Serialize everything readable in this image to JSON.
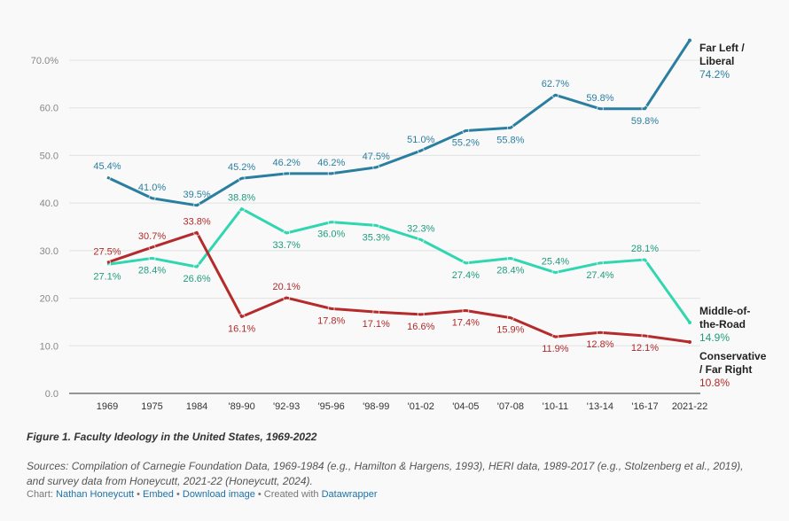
{
  "chart_data": {
    "type": "line",
    "title": "Figure 1. Faculty Ideology in the United States, 1969-2022",
    "x": [
      "1969",
      "1975",
      "1984",
      "'89-90",
      "'92-93",
      "'95-96",
      "'98-99",
      "'01-02",
      "'04-05",
      "'07-08",
      "'10-11",
      "'13-14",
      "'16-17",
      "2021-22"
    ],
    "yticks": [
      "0.0",
      "10.0",
      "20.0",
      "30.0",
      "40.0",
      "50.0",
      "60.0",
      "70.0%"
    ],
    "ylim": [
      0,
      70
    ],
    "grid": true,
    "series": [
      {
        "name": "Far Left / Liberal",
        "color": "#2a7ea0",
        "label_color": "#2b7fa0",
        "end_label": [
          "Far Left /",
          "Liberal"
        ],
        "end_value": "74.2%",
        "values": [
          45.4,
          41.0,
          39.5,
          45.2,
          46.2,
          46.2,
          47.5,
          51.0,
          55.2,
          55.8,
          62.7,
          59.8,
          59.8,
          74.2
        ]
      },
      {
        "name": "Middle-of-the-Road",
        "color": "#2fd6b0",
        "label_color": "#1f9c7d",
        "end_label": [
          "Middle-of-",
          "the-Road"
        ],
        "end_value": "14.9%",
        "values": [
          27.1,
          28.4,
          26.6,
          38.8,
          33.7,
          36.0,
          35.3,
          32.3,
          27.4,
          28.4,
          25.4,
          27.4,
          28.1,
          14.9
        ]
      },
      {
        "name": "Conservative / Far Right",
        "color": "#b52a2a",
        "label_color": "#b02a2a",
        "end_label": [
          "Conservative",
          "/ Far Right"
        ],
        "end_value": "10.8%",
        "values": [
          27.5,
          30.7,
          33.8,
          16.1,
          20.1,
          17.8,
          17.1,
          16.6,
          17.4,
          15.9,
          11.9,
          12.8,
          12.1,
          10.8
        ]
      }
    ]
  },
  "footer": {
    "title": "Figure 1. Faculty Ideology in the United States, 1969-2022",
    "sources": "Sources: Compilation of Carnegie Foundation Data, 1969-1984 (e.g., Hamilton & Hargens, 1993), HERI data, 1989-2017 (e.g., Stolzenberg et al., 2019), and survey data from Honeycutt, 2021-22 (Honeycutt, 2024).",
    "chart_prefix": "Chart: ",
    "author": "Nathan Honeycutt",
    "sep1": " • ",
    "embed": "Embed",
    "sep2": "  • ",
    "download": "Download image",
    "created": " • Created with ",
    "datawrapper": "Datawrapper"
  }
}
